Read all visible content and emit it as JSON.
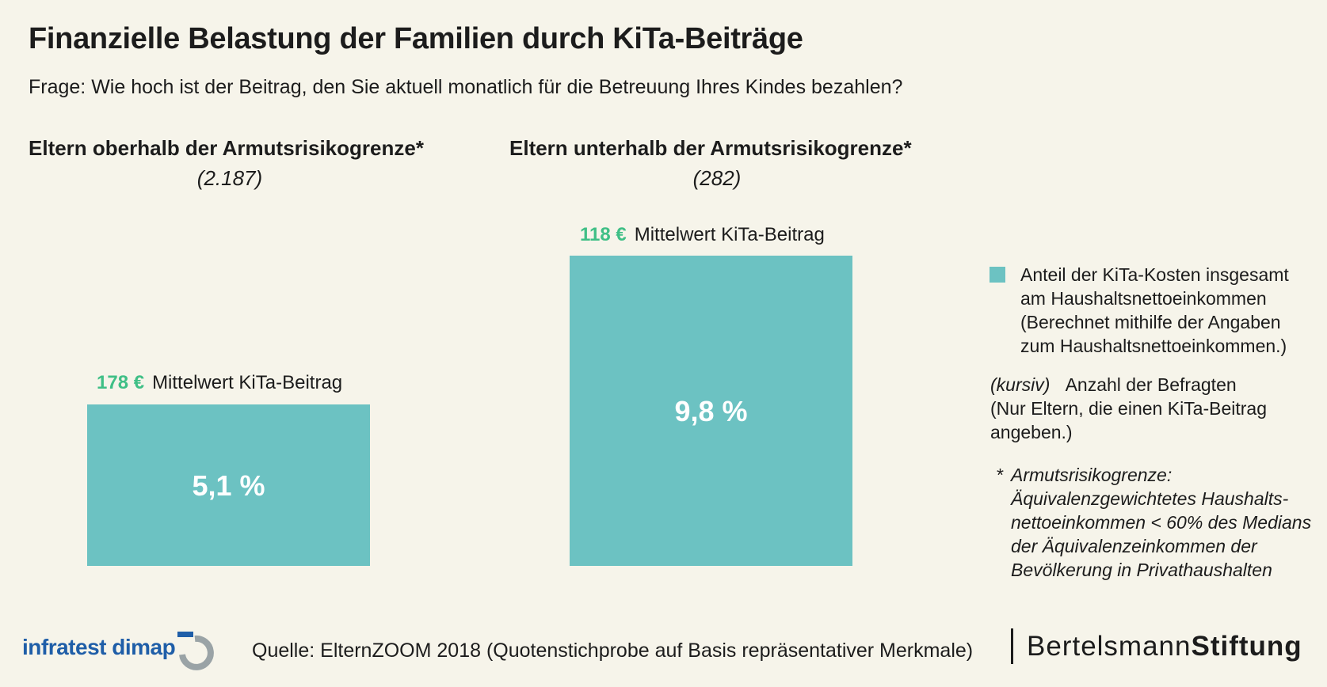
{
  "title": "Finanzielle Belastung der Familien durch KiTa-Beiträge",
  "subtitle": "Frage: Wie hoch ist der Beitrag, den Sie aktuell monatlich für die Betreuung Ihres Kindes bezahlen?",
  "chart_data": {
    "type": "bar",
    "categories": [
      "Eltern oberhalb der Armutsrisikogrenze*",
      "Eltern unterhalb der Armutsrisikogrenze*"
    ],
    "sample_sizes": [
      "(2.187)",
      "(282)"
    ],
    "values": [
      5.1,
      9.8
    ],
    "value_labels": [
      "5,1 %",
      "9,8 %"
    ],
    "mean_fees": [
      "178 €",
      "118 €"
    ],
    "mean_label": "Mittelwert KiTa-Beitrag",
    "ylim": [
      0,
      9.8
    ],
    "bar_color": "#6cc2c2",
    "accent_color": "#3fbf86"
  },
  "legend": {
    "swatch_color": "#6cc2c2",
    "share_lines": [
      "Anteil der KiTa-Kosten insgesamt",
      "am Haushaltsnettoeinkommen",
      "(Berechnet mithilfe der Angaben",
      "zum Haushaltsnettoeinkommen.)"
    ],
    "kursiv_tag": "(kursiv)",
    "count_label": "Anzahl der Befragten",
    "count_lines": [
      "(Nur Eltern, die einen KiTa-Beitrag",
      "angeben.)"
    ],
    "footnote_star": "*",
    "footnote_lines": [
      "Armutsrisikogrenze:",
      "Äquivalenzgewichtetes Haushalts-",
      "nettoeinkommen < 60% des Medians",
      "der Äquivalenzeinkommen der",
      "Bevölkerung in Privathaushalten"
    ]
  },
  "footer": {
    "source": "Quelle: ElternZOOM 2018 (Quotenstichprobe auf Basis repräsentativer Merkmale)",
    "logo_left": "infratest dimap",
    "logo_right_light": "Bertelsmann",
    "logo_right_bold": "Stiftung"
  }
}
